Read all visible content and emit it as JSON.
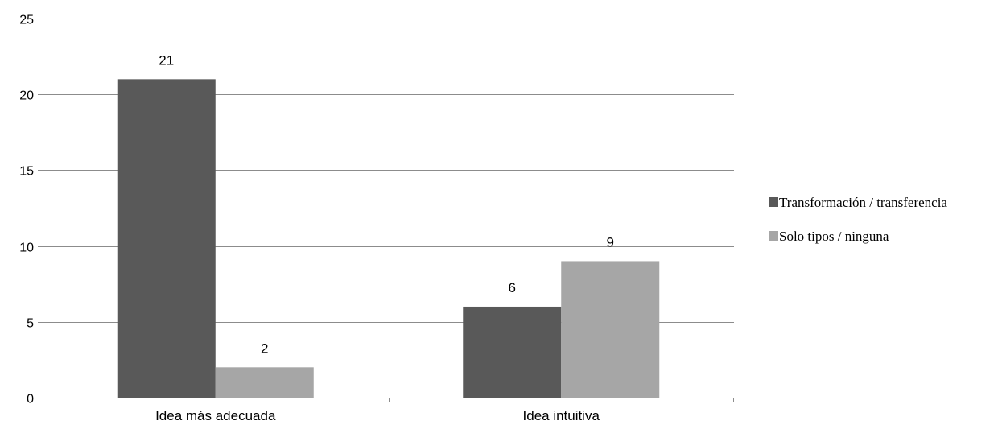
{
  "chart_data": {
    "type": "bar",
    "categories": [
      "Idea más adecuada",
      "Idea intuitiva"
    ],
    "series": [
      {
        "name": "Transformación / transferencia",
        "values": [
          21,
          6
        ],
        "color": "#595959"
      },
      {
        "name": "Solo tipos / ninguna",
        "values": [
          2,
          9
        ],
        "color": "#a6a6a6"
      }
    ],
    "ylim": [
      0,
      25
    ],
    "yticks": [
      0,
      5,
      10,
      15,
      20,
      25
    ],
    "grid": true,
    "legend_position": "right",
    "data_labels": true
  }
}
